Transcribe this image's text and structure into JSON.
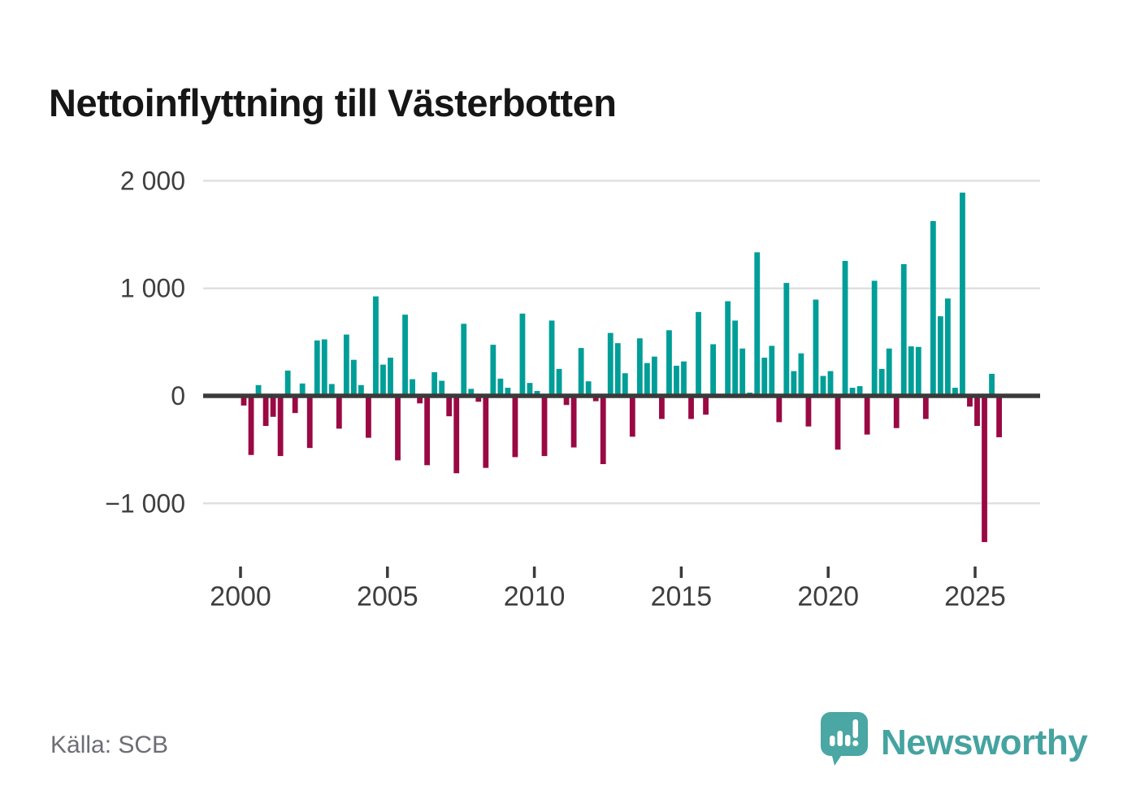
{
  "title": "Nettoinflyttning till Västerbotten",
  "source": "Källa: SCB",
  "brand": {
    "name": "Newsworthy",
    "color": "#45a3a0",
    "logo_icon": "speech-bubble-bar-chart-icon"
  },
  "colors": {
    "positive_bar": "#009e98",
    "negative_bar": "#9a0943",
    "gridline": "#e0e0e0",
    "axis_line": "#3a3a3a",
    "axis_label": "#3f3f3f",
    "source_text": "#6d6d77",
    "title_text": "#161616",
    "background": "#ffffff"
  },
  "chart_data": {
    "type": "bar",
    "title": "Nettoinflyttning till Västerbotten",
    "xlabel": "",
    "ylabel": "",
    "unit": "persons per quarter (net migration)",
    "grid": true,
    "legend": "none",
    "ylim": [
      -1450,
      2050
    ],
    "yticks": [
      {
        "value": 2000,
        "label": "2 000"
      },
      {
        "value": 1000,
        "label": "1 000"
      },
      {
        "value": 0,
        "label": "0"
      },
      {
        "value": -1000,
        "label": "−1 000"
      }
    ],
    "xticks": [
      "2000",
      "2005",
      "2010",
      "2015",
      "2020",
      "2025"
    ],
    "series_note": "quarterly values 2000Q1–2025Q4, teal = positive, dark red = negative",
    "years": [
      {
        "year": 2000,
        "q": [
          -90,
          -550,
          100,
          -280
        ]
      },
      {
        "year": 2001,
        "q": [
          -195,
          -560,
          235,
          -160
        ]
      },
      {
        "year": 2002,
        "q": [
          115,
          -485,
          515,
          525
        ]
      },
      {
        "year": 2003,
        "q": [
          110,
          -305,
          570,
          335
        ]
      },
      {
        "year": 2004,
        "q": [
          100,
          -390,
          925,
          290
        ]
      },
      {
        "year": 2005,
        "q": [
          355,
          -600,
          755,
          155
        ]
      },
      {
        "year": 2006,
        "q": [
          -70,
          -645,
          220,
          140
        ]
      },
      {
        "year": 2007,
        "q": [
          -190,
          -720,
          670,
          65
        ]
      },
      {
        "year": 2008,
        "q": [
          -55,
          -670,
          475,
          160
        ]
      },
      {
        "year": 2009,
        "q": [
          75,
          -570,
          765,
          120
        ]
      },
      {
        "year": 2010,
        "q": [
          45,
          -560,
          700,
          250
        ]
      },
      {
        "year": 2011,
        "q": [
          -85,
          -480,
          445,
          135
        ]
      },
      {
        "year": 2012,
        "q": [
          -50,
          -635,
          585,
          490
        ]
      },
      {
        "year": 2013,
        "q": [
          210,
          -380,
          535,
          305
        ]
      },
      {
        "year": 2014,
        "q": [
          365,
          -215,
          610,
          280
        ]
      },
      {
        "year": 2015,
        "q": [
          320,
          -215,
          780,
          -175
        ]
      },
      {
        "year": 2016,
        "q": [
          480,
          0,
          880,
          700
        ]
      },
      {
        "year": 2017,
        "q": [
          440,
          30,
          1335,
          355
        ]
      },
      {
        "year": 2018,
        "q": [
          465,
          -245,
          1050,
          230
        ]
      },
      {
        "year": 2019,
        "q": [
          395,
          -285,
          895,
          185
        ]
      },
      {
        "year": 2020,
        "q": [
          230,
          -500,
          1255,
          75
        ]
      },
      {
        "year": 2021,
        "q": [
          90,
          -360,
          1070,
          250
        ]
      },
      {
        "year": 2022,
        "q": [
          440,
          -300,
          1225,
          460
        ]
      },
      {
        "year": 2023,
        "q": [
          455,
          -215,
          1625,
          740
        ]
      },
      {
        "year": 2024,
        "q": [
          905,
          75,
          1890,
          -100
        ]
      },
      {
        "year": 2025,
        "q": [
          -280,
          -1360,
          205,
          -385
        ]
      }
    ]
  }
}
